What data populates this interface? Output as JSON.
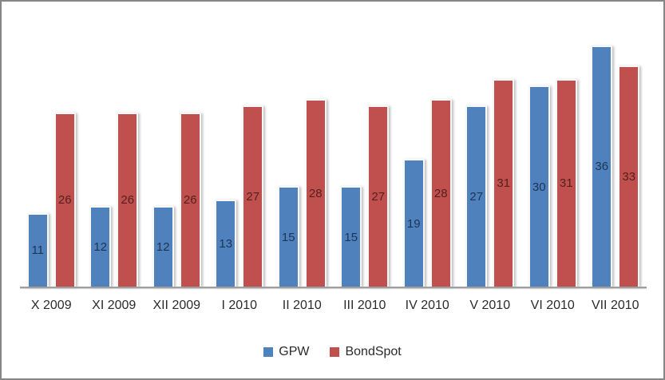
{
  "chart_data": {
    "type": "bar",
    "title": "",
    "xlabel": "",
    "ylabel": "",
    "categories": [
      "X 2009",
      "XI 2009",
      "XII 2009",
      "I 2010",
      "II 2010",
      "III 2010",
      "IV 2010",
      "V 2010",
      "VI 2010",
      "VII 2010"
    ],
    "series": [
      {
        "name": "GPW",
        "color": "#4F81BD",
        "label_color": "#1C3556",
        "values": [
          11,
          12,
          12,
          13,
          15,
          15,
          19,
          27,
          30,
          36
        ]
      },
      {
        "name": "BondSpot",
        "color": "#C0504D",
        "label_color": "#55201E",
        "values": [
          26,
          26,
          26,
          27,
          28,
          27,
          28,
          31,
          31,
          33
        ]
      }
    ],
    "ylim": [
      0,
      40
    ],
    "grid": false,
    "legend_position": "bottom",
    "data_label_position": "center"
  },
  "frame": {
    "border_color": "#868686",
    "background_color": "#FFFFFF",
    "axis_line_color": "#9E9E9E",
    "category_label_color": "#2B2B2B"
  }
}
